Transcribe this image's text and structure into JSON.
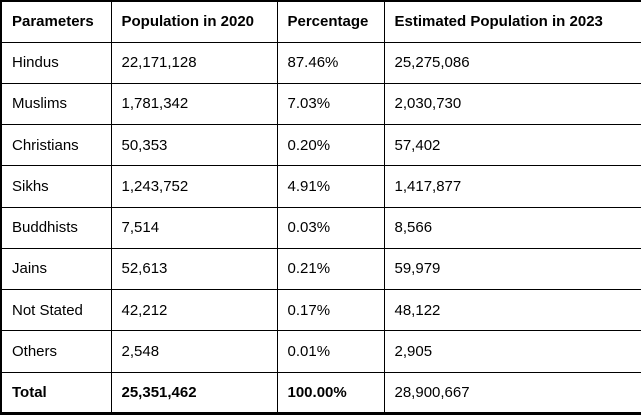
{
  "table": {
    "title_semantic": "Population by religion",
    "columns": [
      "Parameters",
      "Population in 2020",
      "Percentage",
      "Estimated Population in 2023"
    ],
    "rows": [
      {
        "parameter": "Hindus",
        "population_2020": "22,171,128",
        "percentage": "87.46%",
        "estimated_2023": "25,275,086",
        "is_total": false
      },
      {
        "parameter": "Muslims",
        "population_2020": "1,781,342",
        "percentage": "7.03%",
        "estimated_2023": "2,030,730",
        "is_total": false
      },
      {
        "parameter": "Christians",
        "population_2020": "50,353",
        "percentage": "0.20%",
        "estimated_2023": "57,402",
        "is_total": false
      },
      {
        "parameter": "Sikhs",
        "population_2020": "1,243,752",
        "percentage": "4.91%",
        "estimated_2023": "1,417,877",
        "is_total": false
      },
      {
        "parameter": "Buddhists",
        "population_2020": "7,514",
        "percentage": "0.03%",
        "estimated_2023": "8,566",
        "is_total": false
      },
      {
        "parameter": "Jains",
        "population_2020": "52,613",
        "percentage": "0.21%",
        "estimated_2023": "59,979",
        "is_total": false
      },
      {
        "parameter": "Not Stated",
        "population_2020": "42,212",
        "percentage": "0.17%",
        "estimated_2023": "48,122",
        "is_total": false
      },
      {
        "parameter": "Others",
        "population_2020": "2,548",
        "percentage": "0.01%",
        "estimated_2023": "2,905",
        "is_total": false
      },
      {
        "parameter": "Total",
        "population_2020": "25,351,462",
        "percentage": "100.00%",
        "estimated_2023": "28,900,667",
        "is_total": true
      }
    ]
  },
  "colors": {
    "border": "#000000",
    "text": "#000000",
    "background": "#ffffff"
  }
}
